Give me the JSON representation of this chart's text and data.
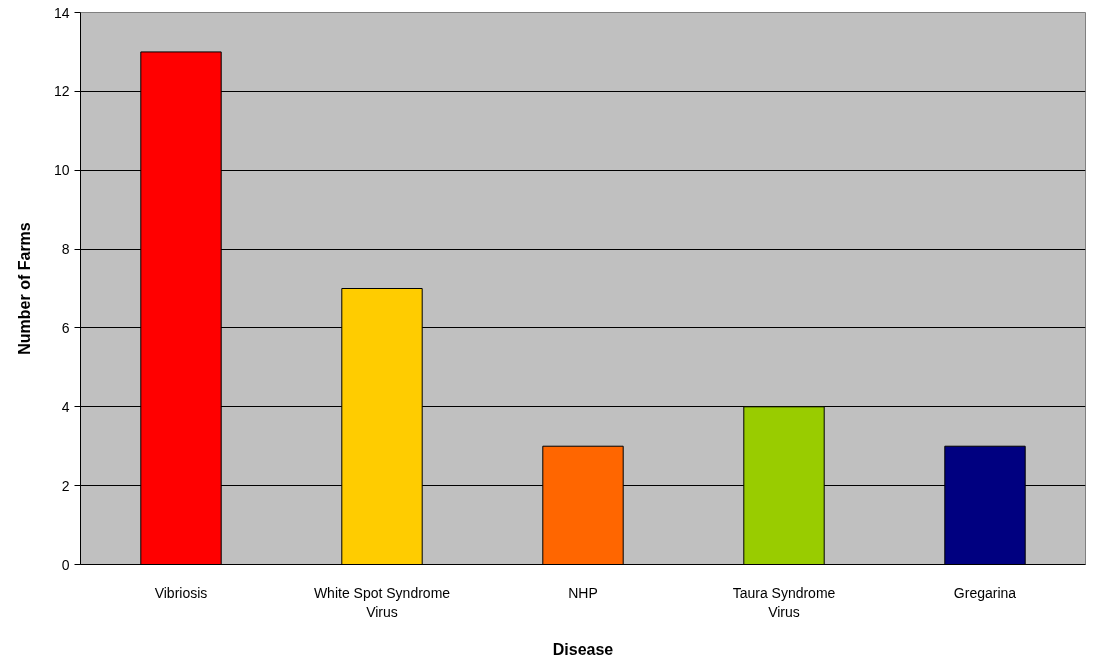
{
  "chart_data": {
    "type": "bar",
    "xlabel": "Disease",
    "ylabel": "Number of Farms",
    "categories": [
      "Vibriosis",
      "White Spot Syndrome Virus",
      "NHP",
      "Taura Syndrome Virus",
      "Gregarina"
    ],
    "values": [
      13,
      7,
      3,
      4,
      3
    ],
    "colors": [
      "#ff0000",
      "#ffcc00",
      "#ff6600",
      "#99cc00",
      "#000080"
    ],
    "ylim": [
      0,
      14
    ],
    "yticks": [
      0,
      2,
      4,
      6,
      8,
      10,
      12,
      14
    ],
    "grid": "y"
  }
}
